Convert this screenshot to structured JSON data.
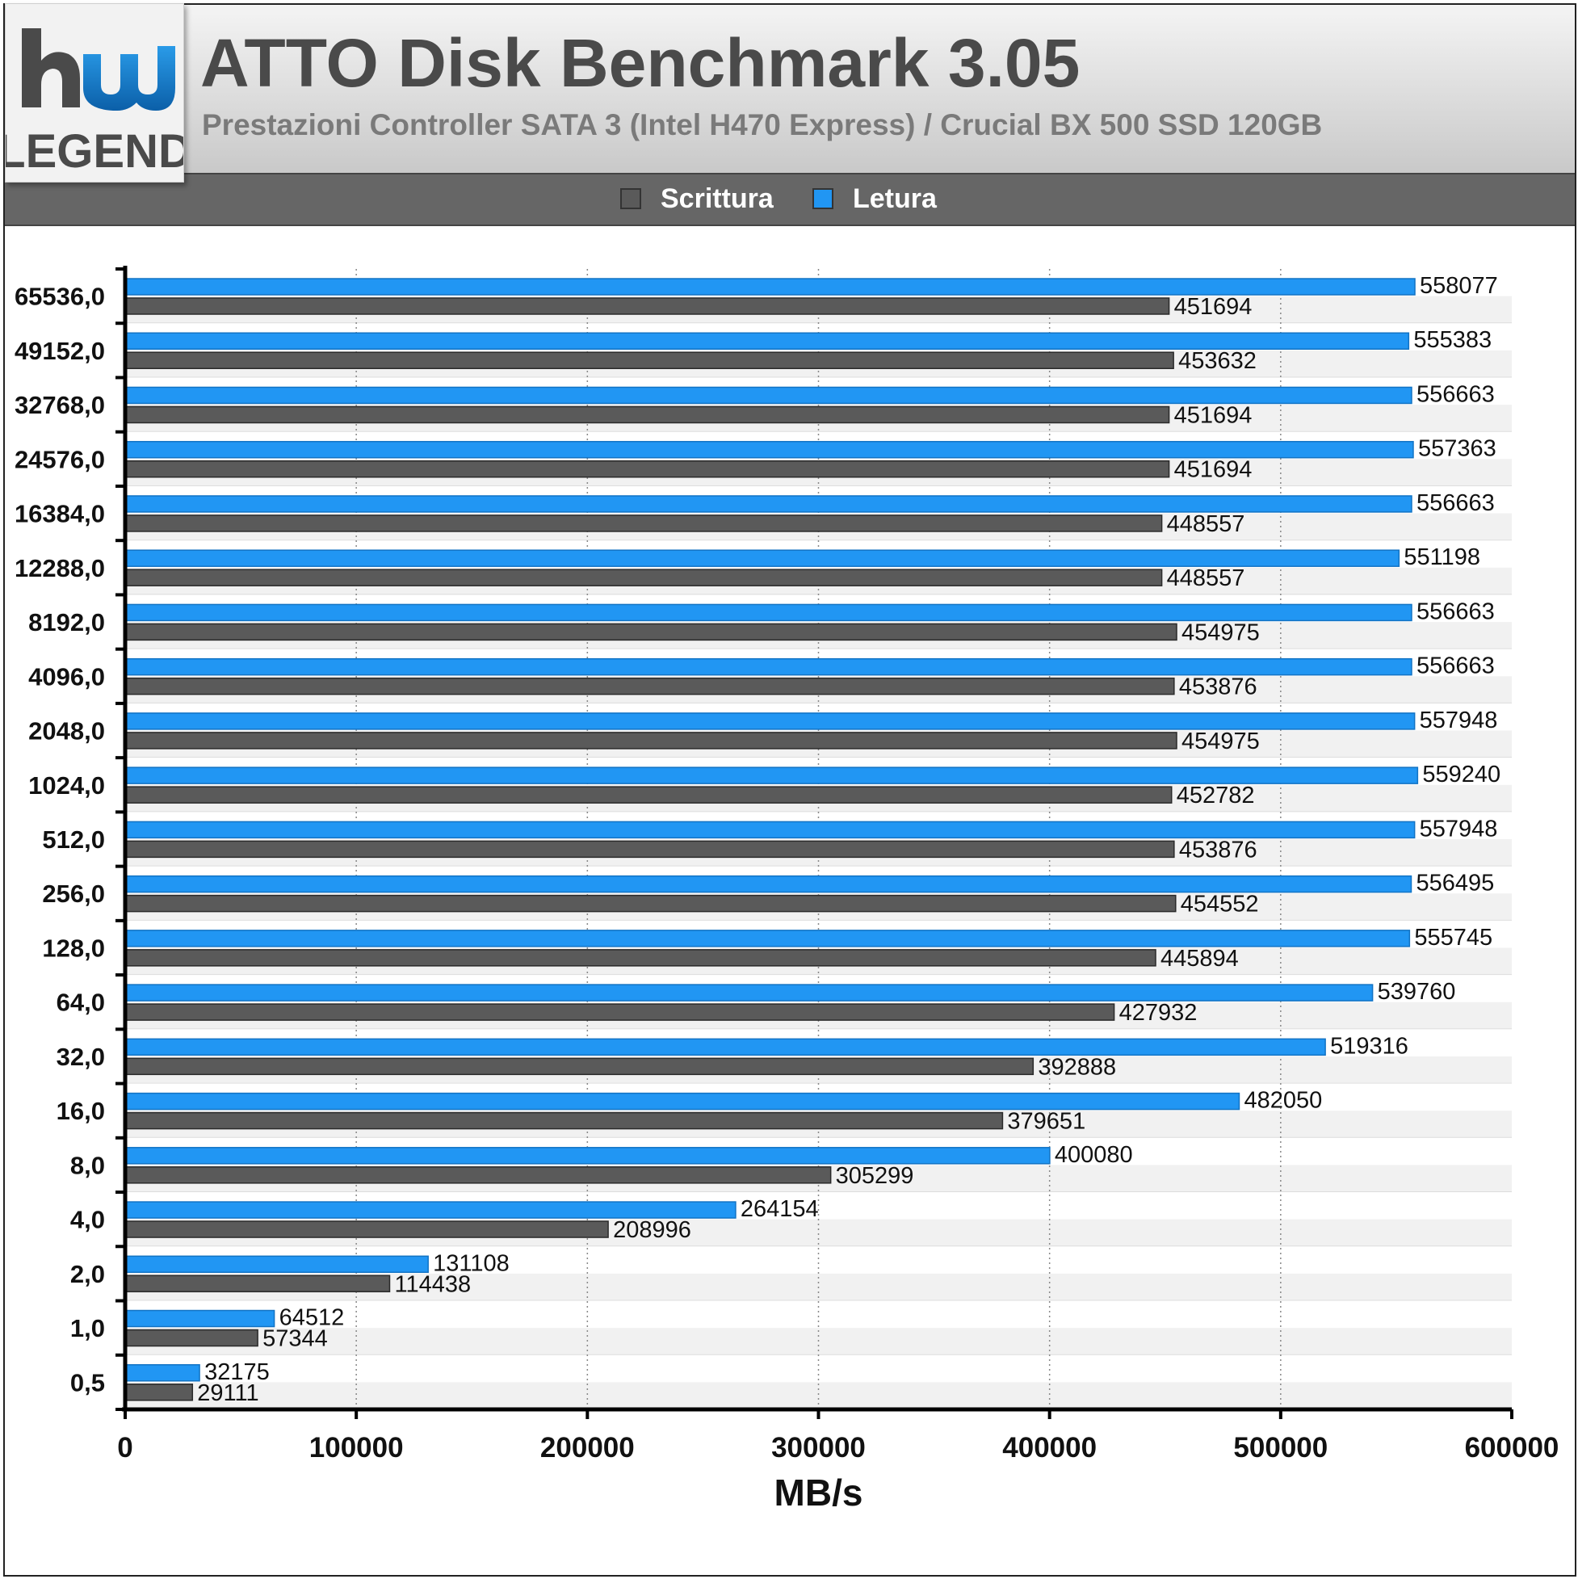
{
  "header": {
    "title": "ATTO Disk Benchmark 3.05",
    "subtitle": "Prestazioni Controller SATA 3 (Intel H470 Express) / Crucial BX 500 SSD 120GB",
    "logo_top": "hw",
    "logo_bottom": "LEGEND"
  },
  "colors": {
    "write": "#5a5a5a",
    "read": "#2196f3"
  },
  "chart_data": {
    "type": "bar",
    "orientation": "horizontal",
    "categories": [
      "65536,0",
      "49152,0",
      "32768,0",
      "24576,0",
      "16384,0",
      "12288,0",
      "8192,0",
      "4096,0",
      "2048,0",
      "1024,0",
      "512,0",
      "256,0",
      "128,0",
      "64,0",
      "32,0",
      "16,0",
      "8,0",
      "4,0",
      "2,0",
      "1,0",
      "0,5"
    ],
    "series": [
      {
        "name": "Letura",
        "color": "#2196f3",
        "values": [
          558077,
          555383,
          556663,
          557363,
          556663,
          551198,
          556663,
          556663,
          557948,
          559240,
          557948,
          556495,
          555745,
          539760,
          519316,
          482050,
          400080,
          264154,
          131108,
          64512,
          32175
        ]
      },
      {
        "name": "Scrittura",
        "color": "#5a5a5a",
        "values": [
          451694,
          453632,
          451694,
          451694,
          448557,
          448557,
          454975,
          453876,
          454975,
          452782,
          453876,
          454552,
          445894,
          427932,
          392888,
          379651,
          305299,
          208996,
          114438,
          57344,
          29111
        ]
      }
    ],
    "legend_order": [
      "Scrittura",
      "Letura"
    ],
    "legend_position": "top",
    "xlabel": "MB/s",
    "ylabel": "",
    "xlim": [
      0,
      600000
    ],
    "xticks": [
      "0",
      "100000",
      "200000",
      "300000",
      "400000",
      "500000",
      "600000"
    ],
    "grid": true
  }
}
